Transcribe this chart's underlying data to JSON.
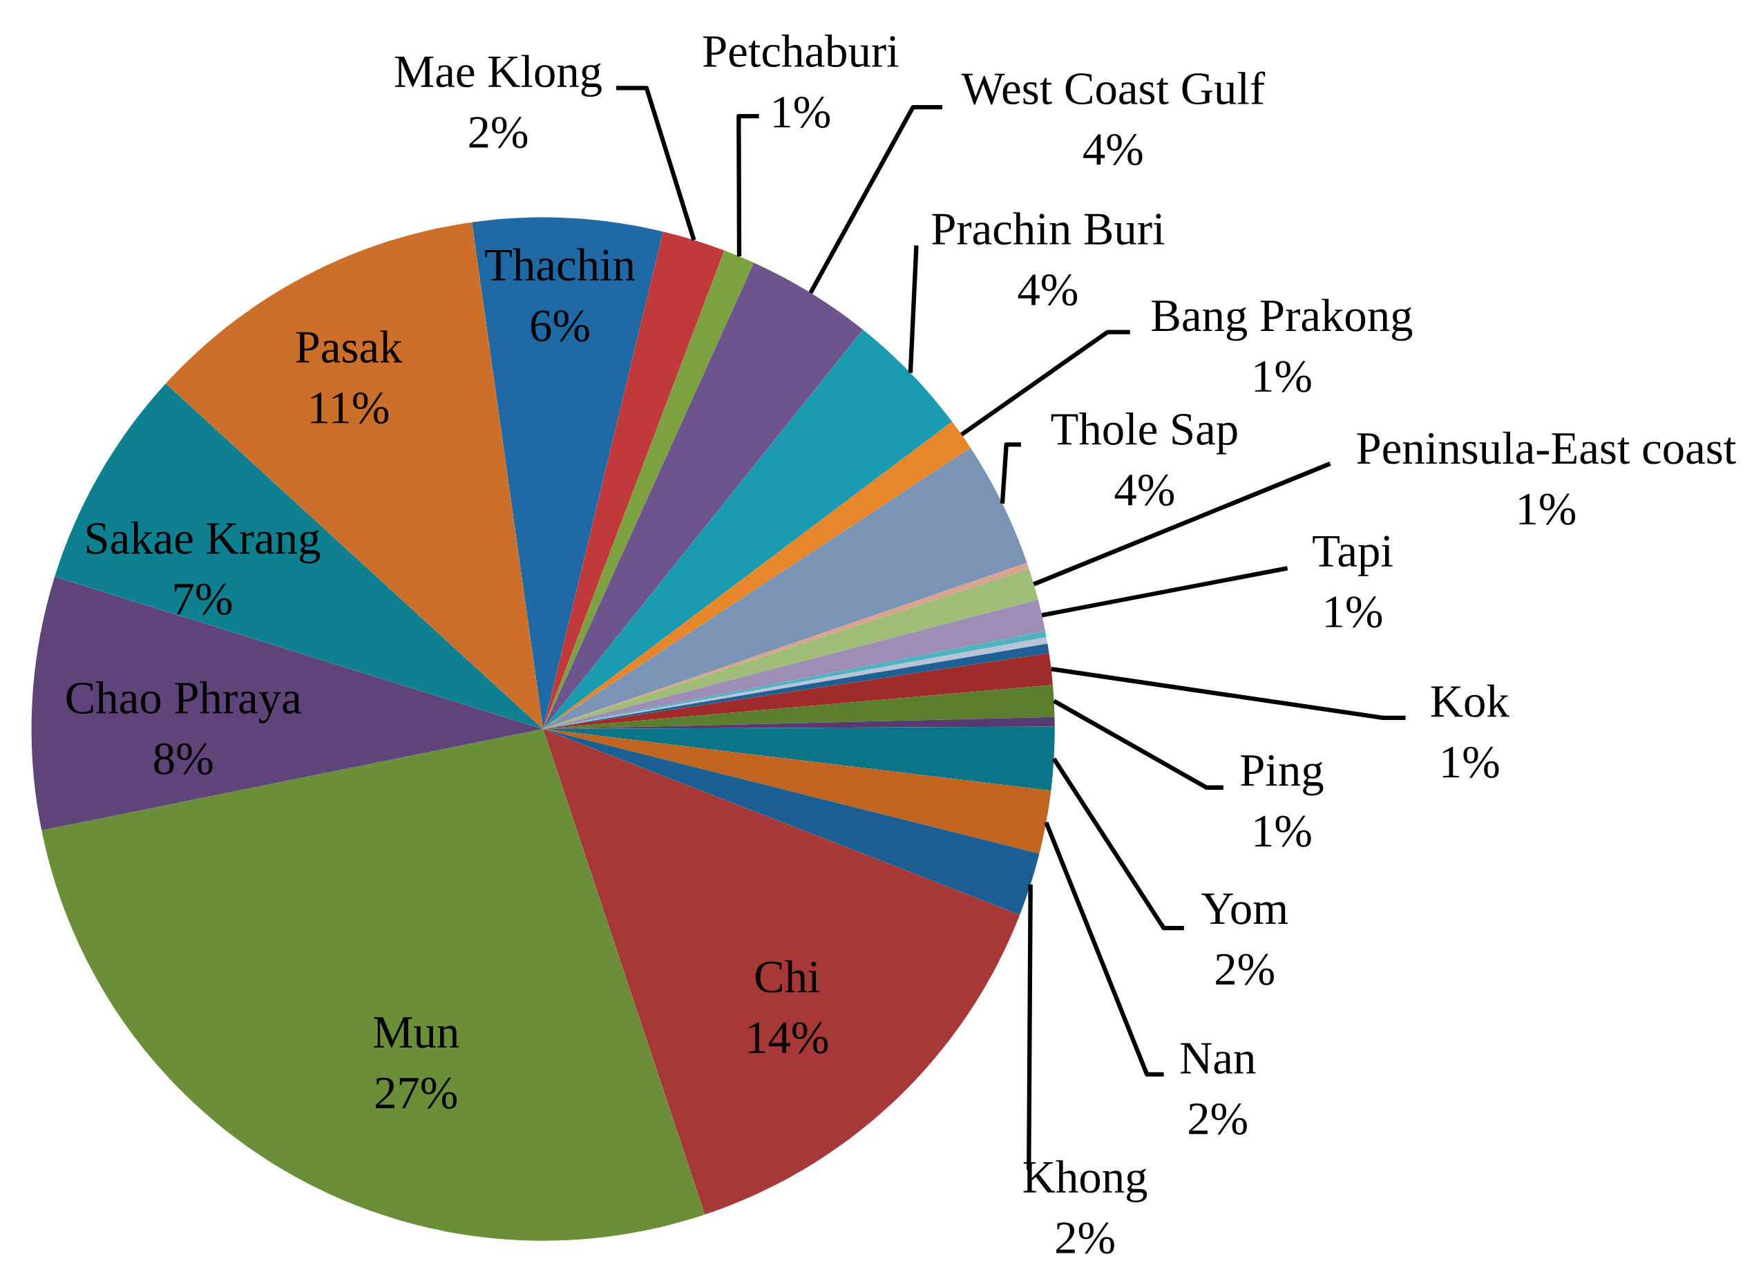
{
  "chart_data": {
    "type": "pie",
    "categories": [
      "Thachin",
      "Mae Klong",
      "Petchaburi",
      "West Coast Gulf",
      "Prachin Buri",
      "Bang Prakong",
      "Thole Sap",
      null,
      "Peninsula-East coast",
      "Tapi",
      null,
      null,
      null,
      "Kok",
      "Ping",
      null,
      "Yom",
      "Nan",
      "Khong",
      "Chi",
      "Mun",
      "Chao Phraya",
      "Sakae Krang",
      "Pasak"
    ],
    "values": [
      6,
      2,
      1,
      4,
      4,
      1,
      4,
      0.2,
      1,
      1,
      0.2,
      0.2,
      0.3,
      1,
      1,
      0.3,
      2,
      2,
      2,
      14,
      27,
      8,
      7,
      11
    ],
    "value_labels": [
      "6%",
      "2%",
      "1%",
      "4%",
      "4%",
      "1%",
      "4%",
      null,
      "1%",
      "1%",
      null,
      null,
      null,
      "1%",
      "1%",
      null,
      "2%",
      "2%",
      "2%",
      "14%",
      "27%",
      "8%",
      "7%",
      "11%"
    ],
    "colors": [
      "#1f6aa5",
      "#c0393b",
      "#7ba23f",
      "#6e548d",
      "#1a9bb0",
      "#e8862c",
      "#7b93b5",
      "#d9a38f",
      "#a0bd78",
      "#9e8db5",
      "#4fb3c0",
      "#b8c4d6",
      "#1e5f94",
      "#a02b2b",
      "#5a7d2e",
      "#563a70",
      "#0b7486",
      "#c0641f",
      "#1a5e94",
      "#a63838",
      "#6a8f38",
      "#5f4479",
      "#0f8090",
      "#cc6f2a"
    ]
  }
}
